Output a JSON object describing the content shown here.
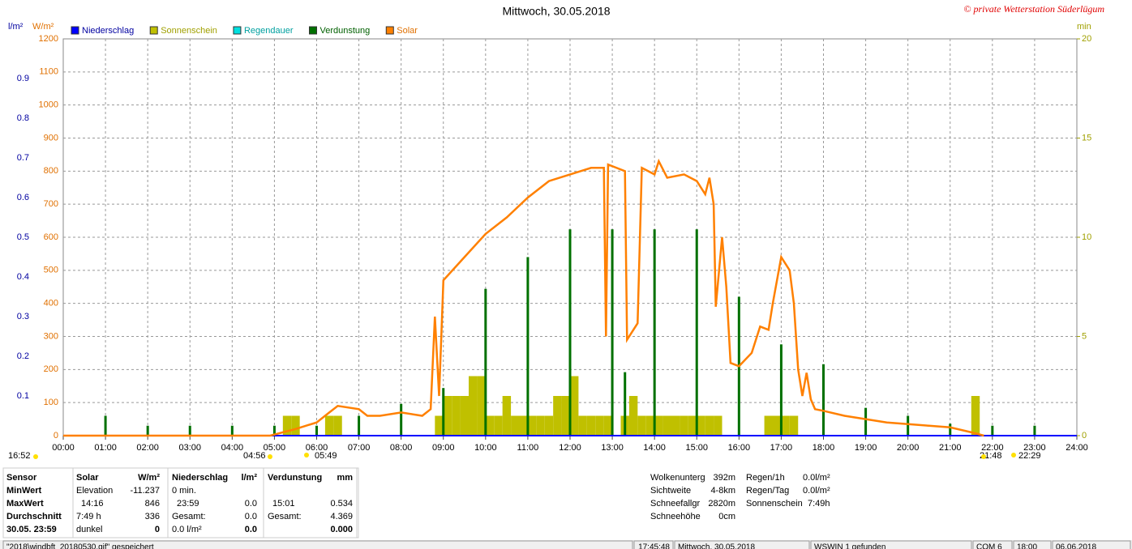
{
  "copyright": "© private Wetterstation Süderlügum",
  "chart_data": {
    "type": "combo",
    "title": "Mittwoch, 30.05.2018",
    "y_unit": "l/m²",
    "y2_unit": "W/m²",
    "y3_unit": "min",
    "xlim": [
      0,
      24
    ],
    "xticks": [
      {
        "value": 0,
        "label": "00:00"
      },
      {
        "value": 1,
        "label": "01:00"
      },
      {
        "value": 2,
        "label": "02:00"
      },
      {
        "value": 3,
        "label": "03:00"
      },
      {
        "value": 4,
        "label": "04:00"
      },
      {
        "value": 5,
        "label": "05:00"
      },
      {
        "value": 6,
        "label": "06:00"
      },
      {
        "value": 7,
        "label": "07:00"
      },
      {
        "value": 8,
        "label": "08:00"
      },
      {
        "value": 9,
        "label": "09:00"
      },
      {
        "value": 10,
        "label": "10:00"
      },
      {
        "value": 11,
        "label": "11:00"
      },
      {
        "value": 12,
        "label": "12:00"
      },
      {
        "value": 13,
        "label": "13:00"
      },
      {
        "value": 14,
        "label": "14:00"
      },
      {
        "value": 15,
        "label": "15:00"
      },
      {
        "value": 16,
        "label": "16:00"
      },
      {
        "value": 17,
        "label": "17:00"
      },
      {
        "value": 18,
        "label": "18:00"
      },
      {
        "value": 19,
        "label": "19:00"
      },
      {
        "value": 20,
        "label": "20:00"
      },
      {
        "value": 21,
        "label": "21:00"
      },
      {
        "value": 22,
        "label": "22:00"
      },
      {
        "value": 23,
        "label": "23:00"
      },
      {
        "value": 24,
        "label": "24:00"
      }
    ],
    "ylim": [
      0,
      1
    ],
    "yticks": [
      0.1,
      0.2,
      0.3,
      0.4,
      0.5,
      0.6,
      0.7,
      0.8,
      0.9
    ],
    "y2lim": [
      0,
      1200
    ],
    "y2ticks": [
      0,
      100,
      200,
      300,
      400,
      500,
      600,
      700,
      800,
      900,
      1000,
      1100,
      1200
    ],
    "y3lim": [
      0,
      20
    ],
    "y3ticks": [
      0,
      5,
      10,
      15,
      20
    ],
    "grid": true,
    "series": [
      {
        "name": "Niederschlag",
        "color": "#0000ff",
        "kind": "line",
        "axis": "y",
        "x": [
          0,
          24
        ],
        "values": [
          0,
          0
        ]
      },
      {
        "name": "Sonnenschein",
        "color": "#c0c000",
        "kind": "bar",
        "axis": "y3",
        "x": [
          5.2,
          5.4,
          6.2,
          6.4,
          8.8,
          9.0,
          9.2,
          9.4,
          9.6,
          9.8,
          10.0,
          10.2,
          10.4,
          10.6,
          10.8,
          11.0,
          11.2,
          11.4,
          11.6,
          11.8,
          12.0,
          12.2,
          12.4,
          12.6,
          12.8,
          13.2,
          13.4,
          13.6,
          13.8,
          14.0,
          14.2,
          14.4,
          14.6,
          14.8,
          15.0,
          15.2,
          15.4,
          16.6,
          16.8,
          17.0,
          17.2,
          21.5
        ],
        "values": [
          1,
          1,
          1,
          1,
          1,
          2,
          2,
          2,
          3,
          3,
          1,
          1,
          2,
          1,
          1,
          1,
          1,
          1,
          2,
          2,
          3,
          1,
          1,
          1,
          1,
          1,
          2,
          1,
          1,
          1,
          1,
          1,
          1,
          1,
          1,
          1,
          1,
          1,
          1,
          1,
          1,
          2
        ]
      },
      {
        "name": "Regendauer",
        "color": "#00e0e0",
        "kind": "bar",
        "axis": "y3",
        "x": [],
        "values": []
      },
      {
        "name": "Verdunstung",
        "color": "#007000",
        "kind": "bar",
        "axis": "y",
        "x": [
          1,
          2,
          3,
          4,
          5,
          6,
          7,
          8,
          9,
          10,
          11,
          12,
          13,
          13.3,
          14,
          15,
          16,
          17,
          18,
          19,
          20,
          21,
          22,
          23
        ],
        "values": [
          0.05,
          0.025,
          0.025,
          0.025,
          0.025,
          0.025,
          0.05,
          0.08,
          0.12,
          0.37,
          0.45,
          0.52,
          0.52,
          0.16,
          0.52,
          0.52,
          0.35,
          0.23,
          0.18,
          0.07,
          0.05,
          0.03,
          0.025,
          0.025
        ]
      },
      {
        "name": "Solar",
        "color": "#ff8000",
        "kind": "line",
        "axis": "y2",
        "x": [
          0,
          4.9,
          5.5,
          6.0,
          6.3,
          6.5,
          7.0,
          7.2,
          7.5,
          8.0,
          8.5,
          8.7,
          8.8,
          8.9,
          9.0,
          9.5,
          10.0,
          10.5,
          11.0,
          11.5,
          12.0,
          12.5,
          12.8,
          12.85,
          12.9,
          13.3,
          13.35,
          13.6,
          13.7,
          14.0,
          14.1,
          14.3,
          14.7,
          15.0,
          15.2,
          15.3,
          15.4,
          15.45,
          15.6,
          15.7,
          15.8,
          16.0,
          16.3,
          16.5,
          16.7,
          16.8,
          17.0,
          17.2,
          17.3,
          17.4,
          17.5,
          17.6,
          17.7,
          17.8,
          18.0,
          18.5,
          19.0,
          19.5,
          20.0,
          20.5,
          21.0,
          21.5,
          21.8
        ],
        "values": [
          0,
          0,
          20,
          40,
          70,
          90,
          80,
          60,
          60,
          70,
          60,
          80,
          360,
          120,
          470,
          540,
          610,
          660,
          720,
          770,
          790,
          810,
          810,
          300,
          820,
          800,
          290,
          340,
          810,
          790,
          830,
          780,
          790,
          770,
          730,
          780,
          700,
          390,
          600,
          450,
          220,
          210,
          250,
          330,
          320,
          400,
          540,
          500,
          400,
          200,
          120,
          190,
          110,
          80,
          75,
          60,
          50,
          40,
          35,
          30,
          25,
          10,
          0
        ]
      }
    ]
  },
  "time_labels": [
    "16:52",
    "04:56",
    "05:49",
    "21:48",
    "22:29"
  ],
  "stats": {
    "rows": [
      [
        "Sensor",
        "Solar",
        "W/m²",
        "Niederschlag",
        "l/m²",
        "Verdunstung",
        "mm"
      ],
      [
        "MinWert",
        "Elevation",
        "-11.237",
        "0 min.",
        null,
        null,
        null
      ],
      [
        "MaxWert",
        "14:16",
        "846",
        "23:59",
        "0.0",
        "15:01",
        "0.534"
      ],
      [
        "Durchschnitt",
        "7:49 h",
        "336",
        "Gesamt:",
        "0.0",
        "Gesamt:",
        "4.369"
      ],
      [
        "30.05. 23:59",
        "dunkel",
        "0",
        "0.0 l/m²",
        "0.0",
        null,
        "0.000"
      ]
    ]
  },
  "info": [
    [
      "Wolkenunterg",
      "392m"
    ],
    [
      "Sichtweite",
      "4-8km"
    ],
    [
      "Schneefallgr",
      "2820m"
    ],
    [
      "Schneehöhe",
      "0cm"
    ]
  ],
  "info2": [
    [
      "Regen/1h",
      "0.0l/m²"
    ],
    [
      "Regen/Tag",
      "0.0l/m²"
    ],
    [
      "Sonnenschein",
      "7:49h"
    ]
  ],
  "status": [
    "\"2018\\windbft_20180530.gif\" gespeichert",
    "17:45:48",
    "Mittwoch, 30.05.2018",
    "WSWIN 1 gefunden",
    "COM 6",
    "18:00",
    "06.06.2018"
  ]
}
